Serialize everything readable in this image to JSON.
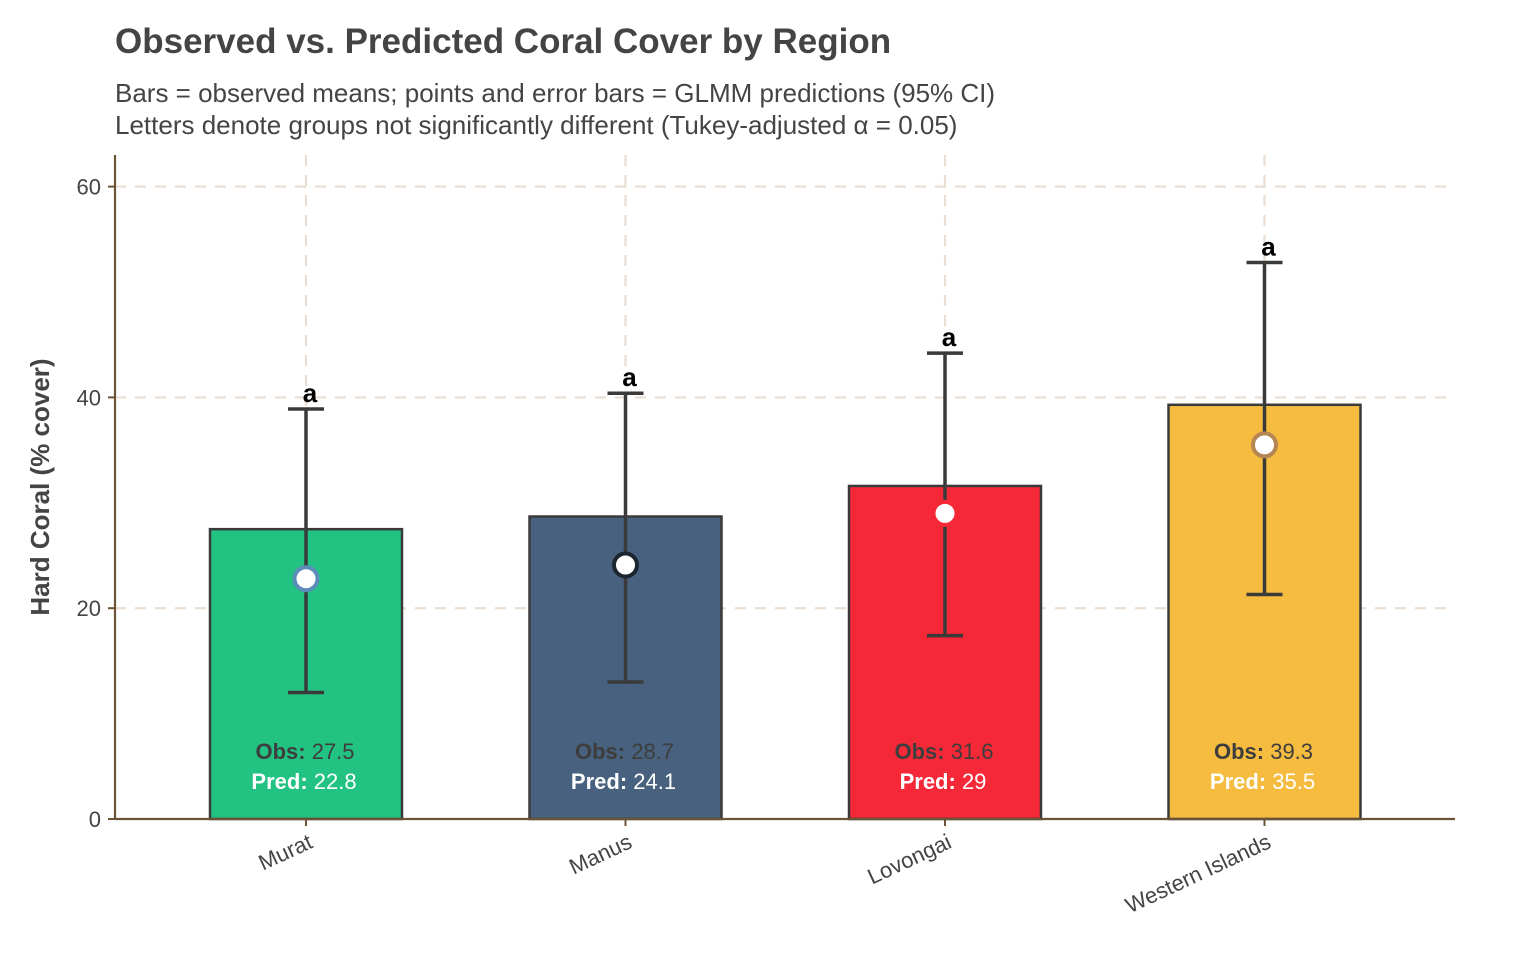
{
  "title": "Observed vs. Predicted Coral Cover by Region",
  "subtitle_lines": [
    "Bars = observed means; points and error bars = GLMM predictions (95% CI)",
    "Letters denote groups not significantly different (Tukey-adjusted α = 0.05)"
  ],
  "chart_data": {
    "type": "bar",
    "title": "Observed vs. Predicted Coral Cover by Region",
    "xlabel": "",
    "ylabel": "Hard Coral (% cover)",
    "ylim": [
      0,
      63
    ],
    "yticks": [
      0,
      20,
      40,
      60
    ],
    "grid": true,
    "categories": [
      "Murat",
      "Manus",
      "Lovongai",
      "Western Islands"
    ],
    "series": [
      {
        "kind": "bar",
        "values": [
          27.5,
          28.7,
          31.6,
          39.3
        ],
        "colors": [
          "#22c382",
          "#47617e",
          "#f42837",
          "#f5bc3f"
        ]
      },
      {
        "kind": "point",
        "values": [
          22.8,
          24.1,
          29,
          35.5
        ],
        "ci_lower": [
          12,
          13,
          17.4,
          21.3
        ],
        "ci_upper": [
          38.9,
          40.4,
          44.2,
          52.8
        ],
        "point_edge_colors": [
          "#5b8db8",
          "#1d2630",
          "#f42837",
          "#b58553"
        ]
      }
    ],
    "group_letters": [
      "a",
      "a",
      "a",
      "a"
    ],
    "labels": {
      "obs_prefix": "Obs:",
      "pred_prefix": "Pred:",
      "obs_values": [
        "27.5",
        "28.7",
        "31.6",
        "39.3"
      ],
      "pred_values": [
        "22.8",
        "24.1",
        "29",
        "35.5"
      ]
    }
  },
  "colors": {
    "axis": "#6b5335",
    "grid": "#eaded2",
    "errorbar": "#3a3a3a",
    "bar_edge": "#3a3a3a",
    "text": "#444444"
  }
}
